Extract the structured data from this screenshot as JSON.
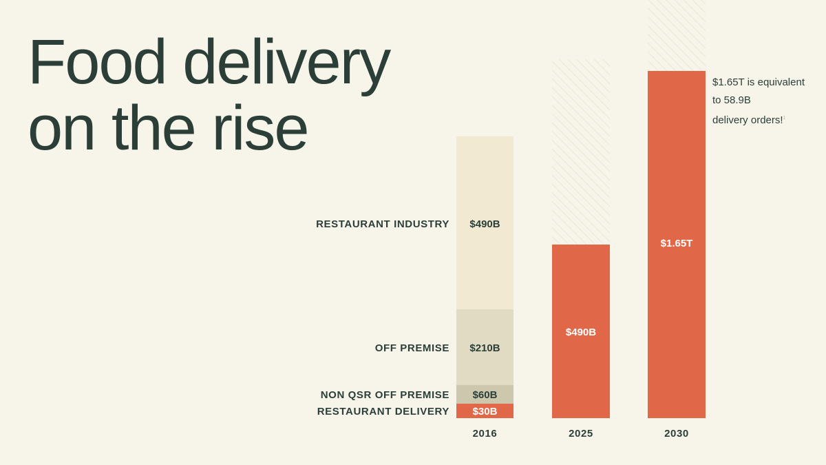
{
  "title": {
    "line1": "Food delivery",
    "line2": "on the rise"
  },
  "note": {
    "line1": "$1.65T is equivalent",
    "line2": "to 58.9B",
    "line3": "delivery orders!",
    "footnote": "1"
  },
  "colors": {
    "background": "#f7f4ea",
    "text": "#2b3f38",
    "restaurant_industry": "#f1e9d2",
    "off_premise": "#e2dbc3",
    "non_qsr_off_premise": "#cdc7ae",
    "restaurant_delivery": "#e06848",
    "hatch": "#e8e0c8"
  },
  "chart_data": {
    "type": "bar",
    "title": "Food delivery on the rise",
    "units": "USD",
    "categories": [
      "2016",
      "2025",
      "2030"
    ],
    "stacked_2016": [
      {
        "name": "RESTAURANT INDUSTRY",
        "value": 490,
        "label": "$490B",
        "color_key": "restaurant_industry",
        "text": "dark"
      },
      {
        "name": "OFF PREMISE",
        "value": 210,
        "label": "$210B",
        "color_key": "off_premise",
        "text": "dark"
      },
      {
        "name": "NON QSR OFF PREMISE",
        "value": 60,
        "label": "$60B",
        "color_key": "non_qsr_off_premise",
        "text": "dark"
      },
      {
        "name": "RESTAURANT DELIVERY",
        "value": 30,
        "label": "$30B",
        "color_key": "restaurant_delivery",
        "text": "light"
      }
    ],
    "delivery_bars": [
      {
        "category": "2025",
        "value": 490,
        "label": "$490B"
      },
      {
        "category": "2030",
        "value": 1650,
        "label": "$1.65T"
      }
    ],
    "scale_note": "bar heights are illustrative, not to linear scale"
  }
}
